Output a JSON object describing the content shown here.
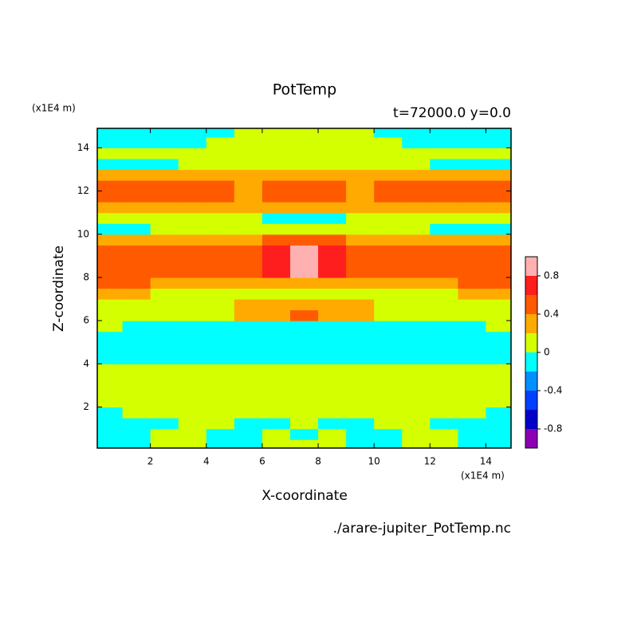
{
  "chart_data": {
    "type": "contour",
    "title": "PotTemp",
    "subtitle": "t=72000.0 y=0.0",
    "x_label": "X-coordinate",
    "y_label": "Z-coordinate",
    "x_unit": "(x1E4 m)",
    "y_unit": "(x1E4 m)",
    "footer": "./arare-jupiter_PotTemp.nc",
    "xlim": [
      0.1,
      14.9
    ],
    "ylim": [
      0.1,
      14.9
    ],
    "xticks": [
      2,
      4,
      6,
      8,
      10,
      12,
      14
    ],
    "yticks": [
      2,
      4,
      6,
      8,
      10,
      12,
      14
    ],
    "x": [
      0.5,
      1.5,
      2.5,
      3.5,
      4.5,
      5.5,
      6.5,
      7.5,
      8.5,
      9.5,
      10.5,
      11.5,
      12.5,
      13.5,
      14.5
    ],
    "y": [
      0.25,
      0.75,
      1.25,
      1.75,
      2.25,
      2.75,
      3.25,
      3.75,
      4.25,
      4.75,
      5.25,
      5.75,
      6.25,
      6.75,
      7.25,
      7.75,
      8.25,
      8.75,
      9.25,
      9.75,
      10.25,
      10.75,
      11.25,
      11.75,
      12.25,
      12.75,
      13.25,
      13.75,
      14.25,
      14.75
    ],
    "z": [
      [
        -0.1,
        -0.1,
        0.1,
        0.1,
        -0.1,
        -0.1,
        0.1,
        0.1,
        0.1,
        -0.1,
        -0.1,
        0.1,
        0.1,
        -0.1,
        -0.1
      ],
      [
        -0.1,
        -0.1,
        0.1,
        0.1,
        -0.1,
        -0.1,
        0.1,
        -0.1,
        0.1,
        -0.1,
        -0.1,
        0.1,
        0.1,
        -0.1,
        -0.1
      ],
      [
        -0.1,
        -0.1,
        -0.1,
        0.1,
        0.1,
        -0.1,
        -0.1,
        0.1,
        -0.1,
        -0.1,
        0.1,
        0.1,
        -0.1,
        -0.1,
        -0.1
      ],
      [
        -0.1,
        0.1,
        0.1,
        0.1,
        0.1,
        0.1,
        0.1,
        0.1,
        0.1,
        0.1,
        0.1,
        0.1,
        0.1,
        0.1,
        -0.1
      ],
      [
        0.1,
        0.1,
        0.1,
        0.1,
        0.1,
        0.1,
        0.1,
        0.1,
        0.1,
        0.1,
        0.1,
        0.1,
        0.1,
        0.1,
        0.1
      ],
      [
        0.1,
        0.1,
        0.1,
        0.1,
        0.1,
        0.1,
        0.1,
        0.1,
        0.1,
        0.1,
        0.1,
        0.1,
        0.1,
        0.1,
        0.1
      ],
      [
        0.1,
        0.1,
        0.1,
        0.1,
        0.1,
        0.1,
        0.1,
        0.1,
        0.1,
        0.1,
        0.1,
        0.1,
        0.1,
        0.1,
        0.1
      ],
      [
        0.1,
        0.1,
        0.1,
        0.1,
        0.1,
        0.1,
        0.1,
        0.1,
        0.1,
        0.1,
        0.1,
        0.1,
        0.1,
        0.1,
        0.1
      ],
      [
        -0.1,
        -0.1,
        -0.1,
        -0.1,
        -0.1,
        -0.1,
        -0.1,
        -0.1,
        -0.1,
        -0.1,
        -0.1,
        -0.1,
        -0.1,
        -0.1,
        -0.1
      ],
      [
        -0.1,
        -0.1,
        -0.1,
        -0.1,
        -0.1,
        -0.1,
        -0.1,
        -0.1,
        -0.1,
        -0.1,
        -0.1,
        -0.1,
        -0.1,
        -0.1,
        -0.1
      ],
      [
        -0.1,
        -0.1,
        -0.1,
        -0.1,
        -0.1,
        -0.1,
        -0.1,
        -0.1,
        -0.1,
        -0.1,
        -0.1,
        -0.1,
        -0.1,
        -0.1,
        -0.1
      ],
      [
        0.1,
        -0.1,
        -0.1,
        -0.1,
        -0.1,
        -0.1,
        -0.1,
        -0.1,
        -0.1,
        -0.1,
        -0.1,
        -0.1,
        -0.1,
        -0.1,
        0.1
      ],
      [
        0.1,
        0.1,
        0.1,
        0.1,
        0.1,
        0.3,
        0.3,
        0.5,
        0.3,
        0.3,
        0.1,
        0.1,
        0.1,
        0.1,
        0.1
      ],
      [
        0.1,
        0.1,
        0.1,
        0.1,
        0.1,
        0.3,
        0.3,
        0.3,
        0.3,
        0.3,
        0.1,
        0.1,
        0.1,
        0.1,
        0.1
      ],
      [
        0.3,
        0.3,
        0.1,
        0.1,
        0.1,
        0.1,
        0.1,
        0.1,
        0.1,
        0.1,
        0.1,
        0.1,
        0.1,
        0.3,
        0.3
      ],
      [
        0.5,
        0.5,
        0.3,
        0.3,
        0.3,
        0.3,
        0.3,
        0.3,
        0.3,
        0.3,
        0.3,
        0.3,
        0.3,
        0.5,
        0.5
      ],
      [
        0.5,
        0.5,
        0.5,
        0.5,
        0.5,
        0.5,
        0.7,
        0.9,
        0.7,
        0.5,
        0.5,
        0.5,
        0.5,
        0.5,
        0.5
      ],
      [
        0.5,
        0.5,
        0.5,
        0.5,
        0.5,
        0.5,
        0.7,
        0.9,
        0.7,
        0.5,
        0.5,
        0.5,
        0.5,
        0.5,
        0.5
      ],
      [
        0.5,
        0.5,
        0.5,
        0.5,
        0.5,
        0.5,
        0.7,
        0.9,
        0.7,
        0.5,
        0.5,
        0.5,
        0.5,
        0.5,
        0.5
      ],
      [
        0.3,
        0.3,
        0.3,
        0.3,
        0.3,
        0.3,
        0.5,
        0.5,
        0.5,
        0.3,
        0.3,
        0.3,
        0.3,
        0.3,
        0.3
      ],
      [
        -0.1,
        -0.1,
        0.1,
        0.1,
        0.1,
        0.1,
        0.1,
        0.1,
        0.1,
        0.1,
        0.1,
        0.1,
        -0.1,
        -0.1,
        -0.1
      ],
      [
        0.1,
        0.1,
        0.1,
        0.1,
        0.1,
        0.1,
        -0.1,
        -0.1,
        -0.1,
        0.1,
        0.1,
        0.1,
        0.1,
        0.1,
        0.1
      ],
      [
        0.3,
        0.3,
        0.3,
        0.3,
        0.3,
        0.3,
        0.3,
        0.3,
        0.3,
        0.3,
        0.3,
        0.3,
        0.3,
        0.3,
        0.3
      ],
      [
        0.5,
        0.5,
        0.5,
        0.5,
        0.5,
        0.3,
        0.5,
        0.5,
        0.5,
        0.3,
        0.5,
        0.5,
        0.5,
        0.5,
        0.5
      ],
      [
        0.5,
        0.5,
        0.5,
        0.5,
        0.5,
        0.3,
        0.5,
        0.5,
        0.5,
        0.3,
        0.5,
        0.5,
        0.5,
        0.5,
        0.5
      ],
      [
        0.3,
        0.3,
        0.3,
        0.3,
        0.3,
        0.3,
        0.3,
        0.3,
        0.3,
        0.3,
        0.3,
        0.3,
        0.3,
        0.3,
        0.3
      ],
      [
        -0.1,
        -0.1,
        -0.1,
        0.1,
        0.1,
        0.1,
        0.1,
        0.1,
        0.1,
        0.1,
        0.1,
        0.1,
        -0.1,
        -0.1,
        -0.1
      ],
      [
        0.1,
        0.1,
        0.1,
        0.1,
        0.1,
        0.1,
        0.1,
        0.1,
        0.1,
        0.1,
        0.1,
        0.1,
        0.1,
        0.1,
        0.1
      ],
      [
        -0.1,
        -0.1,
        -0.1,
        -0.1,
        0.1,
        0.1,
        0.1,
        0.1,
        0.1,
        0.1,
        0.1,
        -0.1,
        -0.1,
        -0.1,
        -0.1
      ],
      [
        -0.1,
        -0.1,
        -0.1,
        -0.1,
        -0.1,
        0.1,
        0.1,
        0.1,
        0.1,
        0.1,
        -0.1,
        -0.1,
        -0.1,
        -0.1,
        -0.1
      ]
    ],
    "levels": [
      -1,
      -0.8,
      -0.6,
      -0.4,
      -0.2,
      0,
      0.2,
      0.4,
      0.6,
      0.8,
      1
    ],
    "colors": [
      "#8c00b4",
      "#0000c8",
      "#0040ff",
      "#0090ff",
      "#00ffff",
      "#d4ff00",
      "#ffaa00",
      "#ff5a00",
      "#ff1e1e",
      "#ffb0b0"
    ],
    "colorbar_ticks": [
      0.8,
      0.4,
      0,
      -0.4,
      -0.8
    ]
  }
}
